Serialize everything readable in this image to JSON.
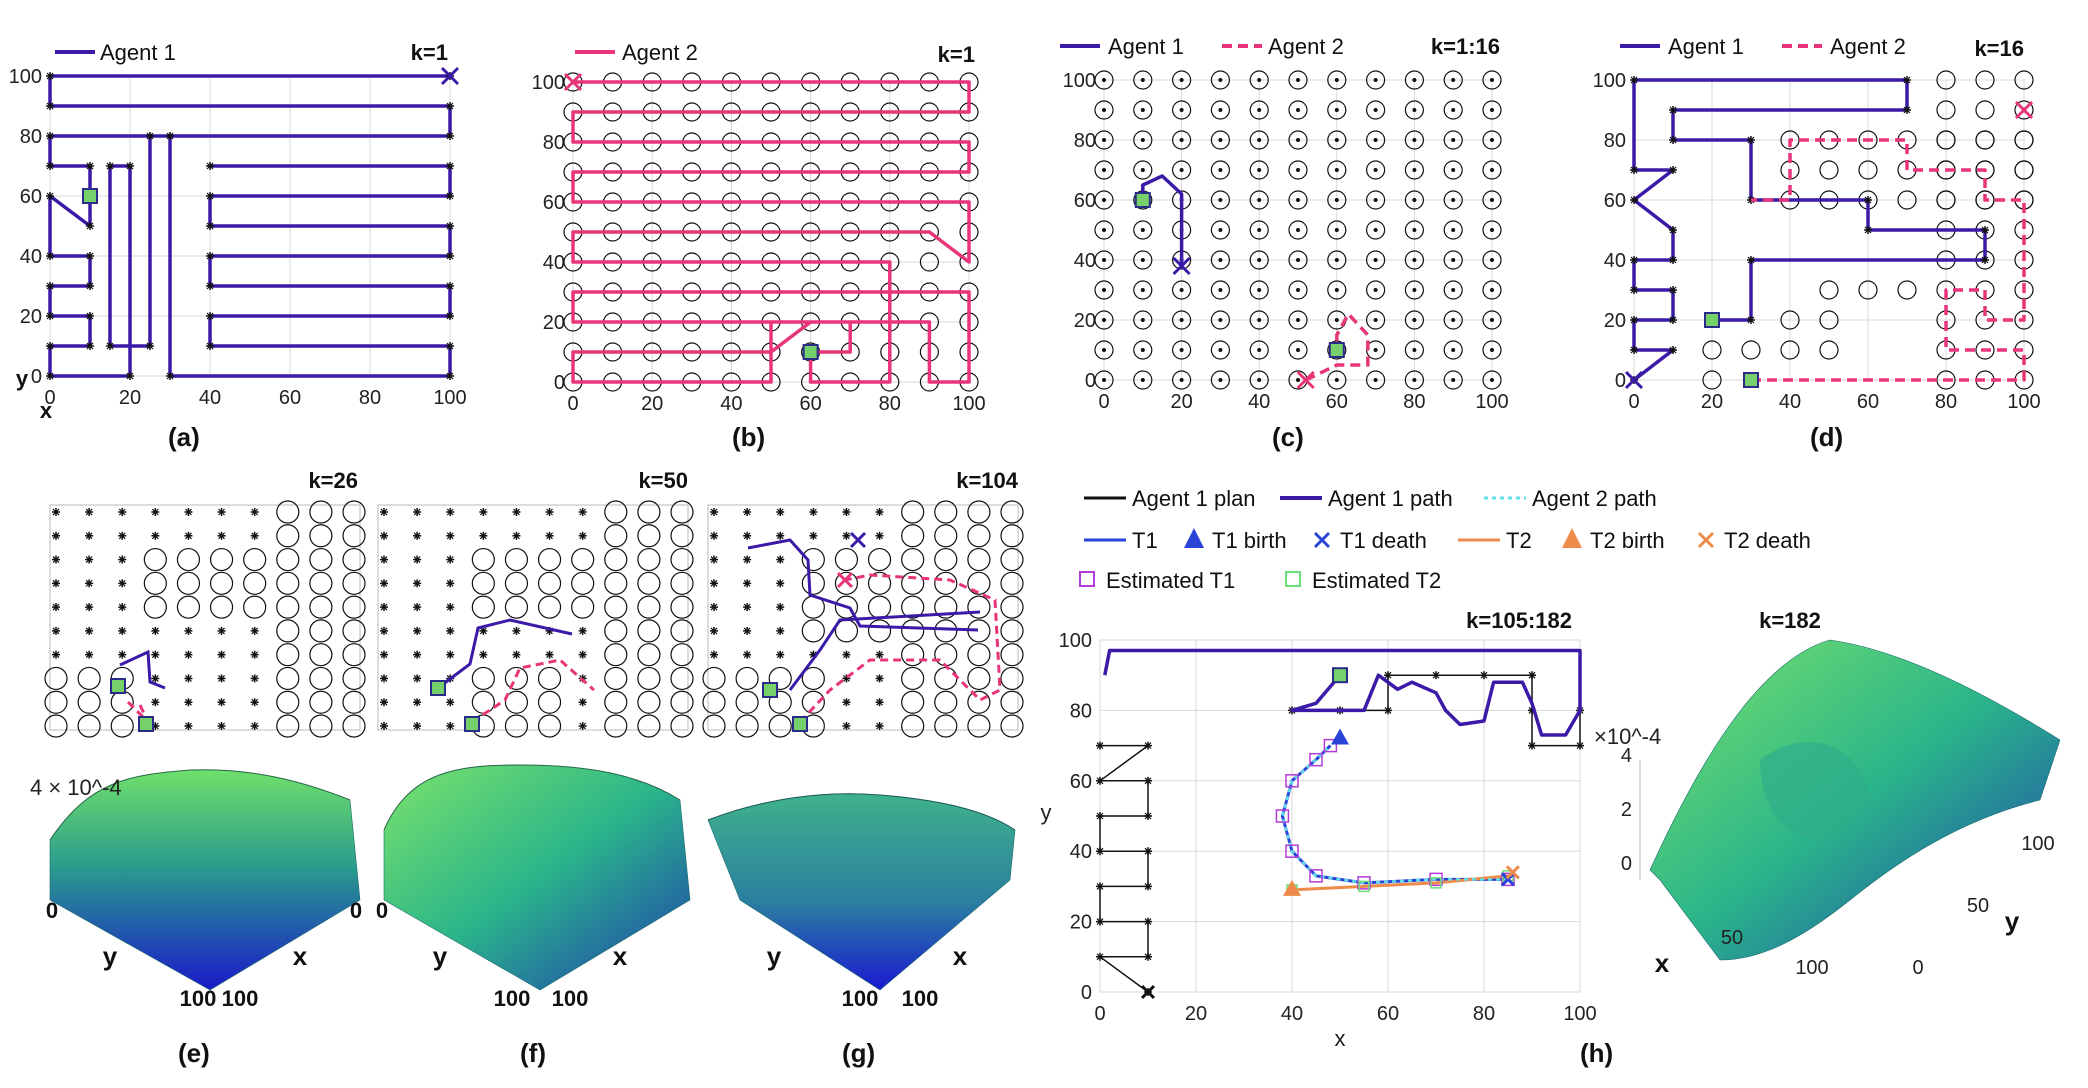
{
  "chart_data": [
    {
      "panel": "(a)",
      "type": "line",
      "k_label": "k=1",
      "legend": [
        "Agent 1"
      ],
      "xticks": [
        "0",
        "20",
        "40",
        "60",
        "80",
        "100"
      ],
      "yticks": [
        "0",
        "20",
        "40",
        "60",
        "80",
        "100"
      ],
      "xlabel": "x",
      "ylabel": "y",
      "series": [
        {
          "name": "Agent 1",
          "color": "#3b1aa8",
          "points": [
            [
              100,
              100
            ],
            [
              0,
              100
            ],
            [
              0,
              90
            ],
            [
              100,
              90
            ],
            [
              100,
              80
            ],
            [
              0,
              80
            ],
            [
              0,
              70
            ],
            [
              10,
              70
            ],
            [
              10,
              50
            ],
            [
              0,
              60
            ],
            [
              0,
              40
            ],
            [
              10,
              40
            ],
            [
              10,
              30
            ],
            [
              0,
              30
            ],
            [
              0,
              20
            ],
            [
              10,
              20
            ],
            [
              10,
              10
            ],
            [
              0,
              10
            ],
            [
              0,
              0
            ],
            [
              20,
              0
            ],
            [
              20,
              70
            ],
            [
              15,
              70
            ],
            [
              15,
              10
            ],
            [
              25,
              10
            ],
            [
              25,
              80
            ],
            [
              30,
              80
            ],
            [
              30,
              0
            ],
            [
              100,
              0
            ],
            [
              100,
              10
            ],
            [
              40,
              10
            ],
            [
              40,
              20
            ],
            [
              100,
              20
            ],
            [
              100,
              30
            ],
            [
              40,
              30
            ],
            [
              40,
              40
            ],
            [
              100,
              40
            ],
            [
              100,
              50
            ],
            [
              40,
              50
            ],
            [
              40,
              60
            ],
            [
              100,
              60
            ],
            [
              100,
              70
            ],
            [
              40,
              70
            ]
          ]
        }
      ],
      "target": [
        10,
        60
      ],
      "end_marker": [
        100,
        100
      ]
    },
    {
      "panel": "(b)",
      "type": "line",
      "k_label": "k=1",
      "legend": [
        "Agent 2"
      ],
      "xticks": [
        "0",
        "20",
        "40",
        "60",
        "80",
        "100"
      ],
      "yticks": [
        "0",
        "20",
        "40",
        "60",
        "80",
        "100"
      ],
      "series": [
        {
          "name": "Agent 2",
          "color": "#e8357a",
          "points": [
            [
              0,
              100
            ],
            [
              100,
              100
            ],
            [
              100,
              90
            ],
            [
              0,
              90
            ],
            [
              0,
              80
            ],
            [
              100,
              80
            ],
            [
              100,
              70
            ],
            [
              0,
              70
            ],
            [
              0,
              60
            ],
            [
              100,
              60
            ],
            [
              100,
              40
            ],
            [
              90,
              50
            ],
            [
              0,
              50
            ],
            [
              0,
              40
            ],
            [
              80,
              40
            ],
            [
              80,
              30
            ],
            [
              0,
              30
            ],
            [
              0,
              20
            ],
            [
              70,
              20
            ],
            [
              70,
              10
            ],
            [
              60,
              10
            ],
            [
              60,
              0
            ],
            [
              80,
              0
            ],
            [
              80,
              30
            ],
            [
              100,
              30
            ],
            [
              100,
              0
            ],
            [
              90,
              0
            ],
            [
              90,
              20
            ],
            [
              60,
              20
            ],
            [
              50,
              10
            ],
            [
              0,
              10
            ],
            [
              0,
              0
            ],
            [
              50,
              0
            ],
            [
              50,
              20
            ],
            [
              40,
              20
            ]
          ]
        }
      ],
      "target": [
        60,
        10
      ],
      "end_marker": [
        0,
        100
      ]
    },
    {
      "panel": "(c)",
      "type": "line",
      "k_label": "k=1:16",
      "legend": [
        "Agent 1",
        "Agent 2"
      ],
      "xticks": [
        "0",
        "20",
        "40",
        "60",
        "80",
        "100"
      ],
      "yticks": [
        "0",
        "20",
        "40",
        "60",
        "80",
        "100"
      ],
      "series": [
        {
          "name": "Agent 1",
          "color": "#3b1aa8",
          "points": [
            [
              10,
              60
            ],
            [
              10,
              65
            ],
            [
              15,
              68
            ],
            [
              20,
              62
            ],
            [
              20,
              55
            ],
            [
              20,
              45
            ],
            [
              20,
              38
            ]
          ]
        },
        {
          "name": "Agent 2",
          "color": "#e8357a",
          "points": [
            [
              52,
              0
            ],
            [
              60,
              5
            ],
            [
              68,
              5
            ],
            [
              68,
              15
            ],
            [
              63,
              22
            ],
            [
              60,
              15
            ],
            [
              60,
              10
            ]
          ]
        }
      ],
      "targets": [
        [
          10,
          60
        ],
        [
          60,
          10
        ]
      ]
    },
    {
      "panel": "(d)",
      "type": "line",
      "k_label": "k=16",
      "legend": [
        "Agent 1",
        "Agent 2"
      ],
      "xticks": [
        "0",
        "20",
        "40",
        "60",
        "80",
        "100"
      ],
      "yticks": [
        "0",
        "20",
        "40",
        "60",
        "80",
        "100"
      ],
      "series": [
        {
          "name": "Agent 1",
          "color": "#3b1aa8",
          "points": [
            [
              0,
              0
            ],
            [
              10,
              10
            ],
            [
              0,
              10
            ],
            [
              0,
              20
            ],
            [
              10,
              20
            ],
            [
              10,
              30
            ],
            [
              0,
              30
            ],
            [
              0,
              40
            ],
            [
              10,
              40
            ],
            [
              10,
              50
            ],
            [
              0,
              60
            ],
            [
              10,
              70
            ],
            [
              0,
              70
            ],
            [
              0,
              100
            ],
            [
              70,
              100
            ],
            [
              70,
              90
            ],
            [
              10,
              90
            ],
            [
              10,
              80
            ],
            [
              30,
              80
            ],
            [
              30,
              60
            ],
            [
              60,
              60
            ],
            [
              60,
              50
            ],
            [
              90,
              50
            ],
            [
              90,
              40
            ],
            [
              30,
              40
            ],
            [
              30,
              20
            ],
            [
              20,
              20
            ]
          ]
        },
        {
          "name": "Agent 2",
          "color": "#e8357a",
          "points": [
            [
              30,
              0
            ],
            [
              100,
              0
            ],
            [
              100,
              10
            ],
            [
              80,
              10
            ],
            [
              80,
              30
            ],
            [
              90,
              30
            ],
            [
              90,
              20
            ],
            [
              100,
              20
            ],
            [
              100,
              60
            ],
            [
              90,
              60
            ],
            [
              90,
              70
            ],
            [
              70,
              70
            ],
            [
              70,
              80
            ],
            [
              40,
              80
            ],
            [
              40,
              60
            ],
            [
              30,
              60
            ]
          ]
        }
      ],
      "targets": [
        [
          20,
          20
        ],
        [
          30,
          0
        ]
      ]
    },
    {
      "panel": "(e)",
      "type": "heatmap",
      "k_label": "k=26",
      "zlabel": "4 × 10^-4",
      "corner_labels": [
        "0",
        "0",
        "100",
        "100"
      ],
      "axis_labels": [
        "y",
        "x"
      ]
    },
    {
      "panel": "(f)",
      "type": "heatmap",
      "k_label": "k=50",
      "corner_labels": [
        "0",
        "100",
        "100"
      ],
      "axis_labels": [
        "y",
        "x"
      ]
    },
    {
      "panel": "(g)",
      "type": "heatmap",
      "k_label": "k=104",
      "corner_labels": [
        "100",
        "100"
      ],
      "axis_labels": [
        "y",
        "x"
      ]
    },
    {
      "panel": "(h)",
      "type": "line",
      "k_label": "k=105:182",
      "legend": [
        "Agent 1 plan",
        "Agent 1 path",
        "Agent 2 path",
        "T1",
        "T1 birth",
        "T1 death",
        "T2",
        "T2 birth",
        "T2 death",
        "Estimated T1",
        "Estimated T2"
      ],
      "xticks": [
        "0",
        "20",
        "40",
        "60",
        "80",
        "100"
      ],
      "yticks": [
        "0",
        "20",
        "40",
        "60",
        "80",
        "100"
      ],
      "xlabel": "x",
      "ylabel": "y",
      "T1": [
        [
          85,
          32
        ],
        [
          70,
          32
        ],
        [
          55,
          31
        ],
        [
          45,
          33
        ],
        [
          40,
          40
        ],
        [
          38,
          50
        ],
        [
          40,
          60
        ],
        [
          45,
          66
        ],
        [
          48,
          70
        ]
      ],
      "T2": [
        [
          40,
          29
        ],
        [
          55,
          30
        ],
        [
          70,
          31
        ],
        [
          85,
          33
        ]
      ],
      "plan": [
        [
          10,
          0
        ],
        [
          0,
          10
        ],
        [
          10,
          10
        ],
        [
          10,
          20
        ],
        [
          0,
          20
        ],
        [
          0,
          30
        ],
        [
          10,
          30
        ],
        [
          10,
          40
        ],
        [
          0,
          40
        ],
        [
          0,
          50
        ],
        [
          10,
          50
        ],
        [
          10,
          60
        ],
        [
          0,
          60
        ],
        [
          10,
          70
        ],
        [
          0,
          70
        ]
      ],
      "path": [
        [
          50,
          90
        ],
        [
          45,
          82
        ],
        [
          40,
          80
        ],
        [
          55,
          80
        ],
        [
          58,
          90
        ],
        [
          62,
          86
        ],
        [
          65,
          88
        ],
        [
          70,
          85
        ],
        [
          72,
          80
        ],
        [
          75,
          76
        ],
        [
          80,
          77
        ],
        [
          82,
          88
        ],
        [
          88,
          88
        ],
        [
          90,
          82
        ],
        [
          92,
          73
        ],
        [
          97,
          73
        ],
        [
          100,
          80
        ],
        [
          100,
          97
        ],
        [
          2,
          97
        ],
        [
          1,
          90
        ]
      ]
    },
    {
      "panel": "k=182",
      "type": "heatmap",
      "k_label": "k=182",
      "zticks": [
        "0",
        "2",
        "4"
      ],
      "zlabel": "×10^-4",
      "xticks": [
        "50",
        "100"
      ],
      "yticks": [
        "0",
        "50",
        "100"
      ],
      "axis_labels": [
        "x",
        "y"
      ]
    }
  ],
  "panel_labels": [
    "(a)",
    "(b)",
    "(c)",
    "(d)",
    "(e)",
    "(f)",
    "(g)",
    "(h)"
  ],
  "colors": {
    "agent1": "#3b1aa8",
    "agent2": "#e8357a",
    "target": "#76d16a",
    "grid": "#d8d8d8",
    "t1": "#2a44d8",
    "t2": "#ee8a4a",
    "agent2_path_cyan": "#5fe0e8",
    "est_t1": "#b43ad9",
    "est_t2": "#6ee07a"
  }
}
